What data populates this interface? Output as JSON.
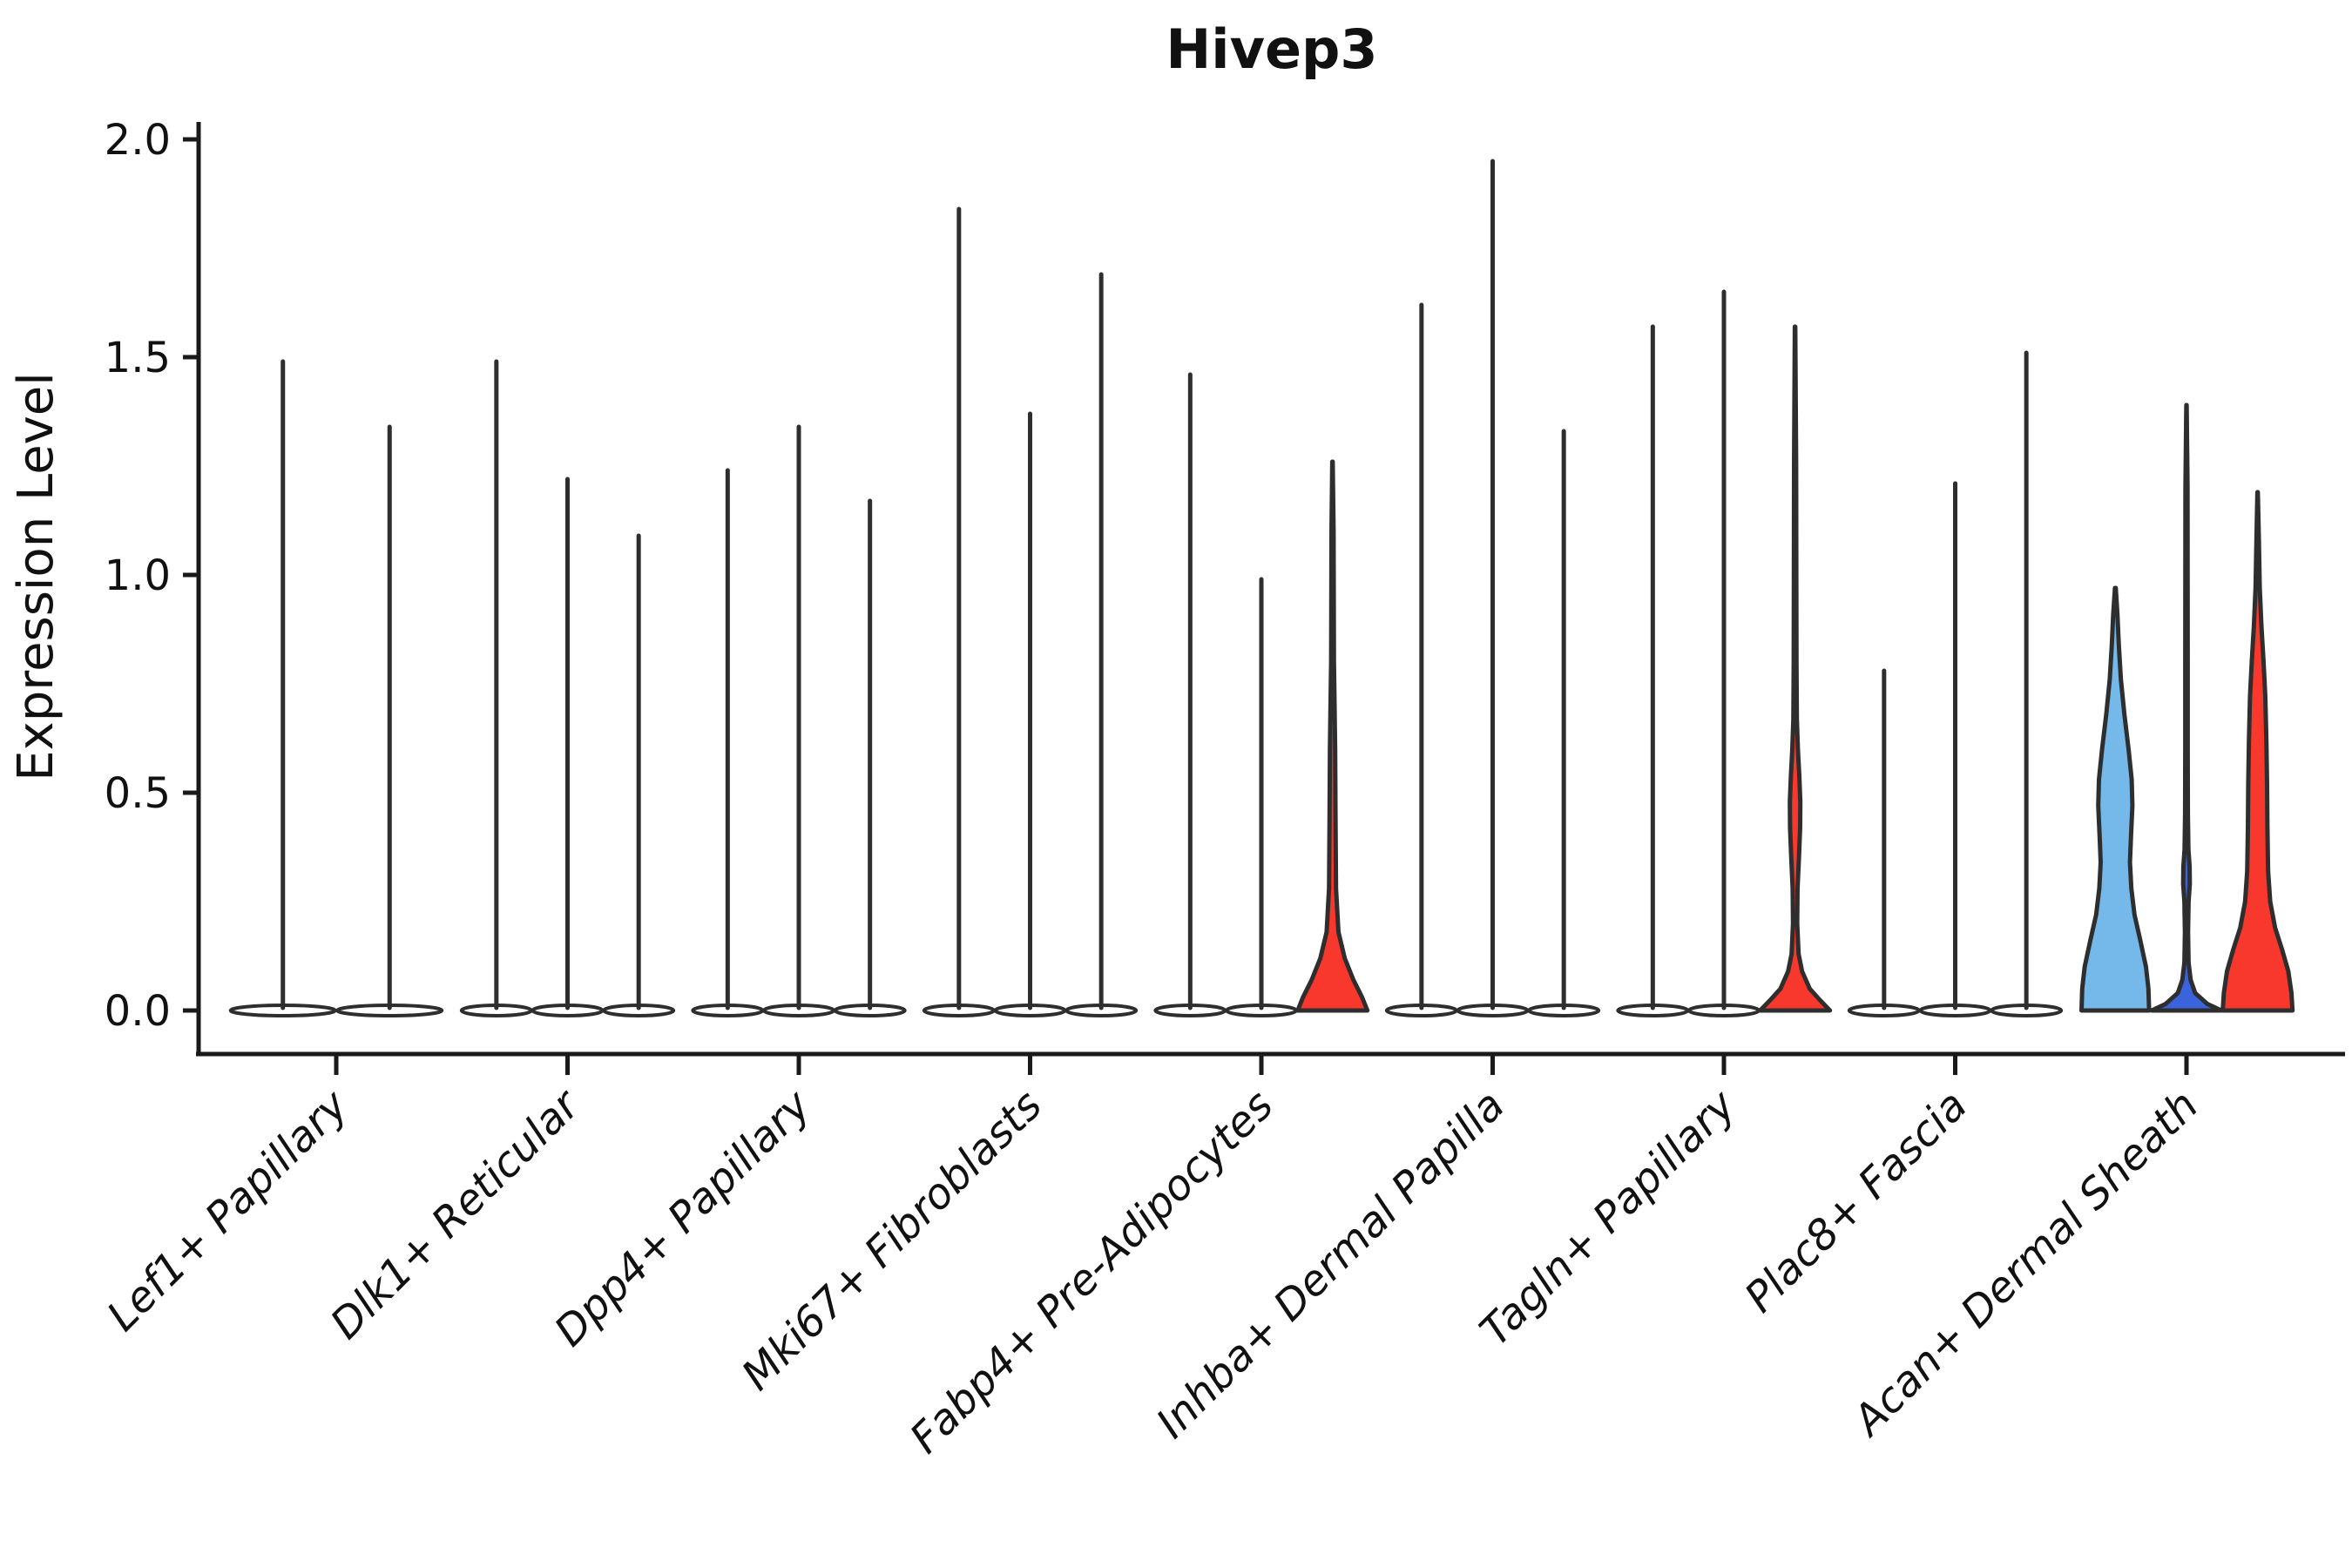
{
  "title": "Hivep3",
  "axes": {
    "ylabel": "Expression Level",
    "yticks": [
      "0.0",
      "0.5",
      "1.0",
      "1.5",
      "2.0"
    ],
    "ytick_values": [
      0.0,
      0.5,
      1.0,
      1.5,
      2.0
    ]
  },
  "colors": {
    "red": "#F8372D",
    "light_blue": "#74B9EA",
    "dark_blue": "#3B63DB",
    "outline": "#2E2E2E",
    "axis": "#1A1A1A",
    "background": "#FFFFFF"
  },
  "chart_data": {
    "type": "violin",
    "title": "Hivep3",
    "xlabel": "",
    "ylabel": "Expression Level",
    "ylim": [
      -0.1,
      2.04
    ],
    "yticks": [
      0.0,
      0.5,
      1.0,
      1.5,
      2.0
    ],
    "grid": false,
    "legend": "none",
    "description": "Violin plot of Hivep3 expression across 9 fibroblast cell-type clusters; each category contains 2-3 violins (sub-groups). Most violins are unfilled thin spikes with a flat base at 0; highlighted violins are filled red, light blue or dark blue. 'max' is the spike top (max expression value).",
    "categories": [
      {
        "label": "Lef1+ Papillary",
        "violins": [
          {
            "max": 1.49,
            "fill": "none"
          },
          {
            "max": 1.34,
            "fill": "none"
          }
        ]
      },
      {
        "label": "Dlk1+ Reticular",
        "violins": [
          {
            "max": 1.49,
            "fill": "none"
          },
          {
            "max": 1.22,
            "fill": "none"
          },
          {
            "max": 1.09,
            "fill": "none"
          }
        ]
      },
      {
        "label": "Dpp4+ Papillary",
        "violins": [
          {
            "max": 1.24,
            "fill": "none"
          },
          {
            "max": 1.34,
            "fill": "none"
          },
          {
            "max": 1.17,
            "fill": "none"
          }
        ]
      },
      {
        "label": "Mki67+ Fibroblasts",
        "violins": [
          {
            "max": 1.84,
            "fill": "none"
          },
          {
            "max": 1.37,
            "fill": "none"
          },
          {
            "max": 1.69,
            "fill": "none"
          }
        ]
      },
      {
        "label": "Fabp4+ Pre-Adipocytes",
        "violins": [
          {
            "max": 1.46,
            "fill": "none"
          },
          {
            "max": 0.99,
            "fill": "none"
          },
          {
            "max": 1.26,
            "fill": "red",
            "profile": [
              [
                0,
                1.0
              ],
              [
                0.03,
                0.85
              ],
              [
                0.07,
                0.6
              ],
              [
                0.12,
                0.35
              ],
              [
                0.18,
                0.17
              ],
              [
                0.28,
                0.1
              ],
              [
                0.45,
                0.085
              ],
              [
                0.6,
                0.075
              ],
              [
                0.72,
                0.055
              ],
              [
                0.8,
                0.04
              ],
              [
                0.95,
                0.035
              ],
              [
                1.1,
                0.03
              ],
              [
                1.26,
                0.006
              ]
            ]
          }
        ]
      },
      {
        "label": "Inhba+ Dermal Papilla",
        "violins": [
          {
            "max": 1.62,
            "fill": "none"
          },
          {
            "max": 1.95,
            "fill": "none"
          },
          {
            "max": 1.33,
            "fill": "none"
          }
        ]
      },
      {
        "label": "Tagln+ Papillary",
        "violins": [
          {
            "max": 1.57,
            "fill": "none"
          },
          {
            "max": 1.65,
            "fill": "none"
          },
          {
            "max": 1.57,
            "fill": "red",
            "profile": [
              [
                0,
                1.0
              ],
              [
                0.025,
                0.7
              ],
              [
                0.05,
                0.42
              ],
              [
                0.09,
                0.2
              ],
              [
                0.13,
                0.1
              ],
              [
                0.2,
                0.06
              ],
              [
                0.28,
                0.07
              ],
              [
                0.35,
                0.11
              ],
              [
                0.42,
                0.145
              ],
              [
                0.48,
                0.15
              ],
              [
                0.54,
                0.12
              ],
              [
                0.6,
                0.08
              ],
              [
                0.67,
                0.05
              ],
              [
                0.8,
                0.04
              ],
              [
                1.0,
                0.035
              ],
              [
                1.25,
                0.03
              ],
              [
                1.57,
                0.006
              ]
            ]
          }
        ]
      },
      {
        "label": "Plac8+ Fascia",
        "violins": [
          {
            "max": 0.78,
            "fill": "none"
          },
          {
            "max": 1.21,
            "fill": "none"
          },
          {
            "max": 1.51,
            "fill": "none"
          }
        ]
      },
      {
        "label": "Acan+ Dermal Sheath",
        "violins": [
          {
            "max": 0.97,
            "fill": "light_blue",
            "profile": [
              [
                0,
                0.97
              ],
              [
                0.05,
                0.95
              ],
              [
                0.1,
                0.88
              ],
              [
                0.16,
                0.72
              ],
              [
                0.22,
                0.55
              ],
              [
                0.28,
                0.46
              ],
              [
                0.34,
                0.42
              ],
              [
                0.4,
                0.45
              ],
              [
                0.47,
                0.49
              ],
              [
                0.53,
                0.47
              ],
              [
                0.6,
                0.38
              ],
              [
                0.68,
                0.26
              ],
              [
                0.76,
                0.16
              ],
              [
                0.84,
                0.1
              ],
              [
                0.91,
                0.06
              ],
              [
                0.97,
                0.012
              ]
            ]
          },
          {
            "max": 1.39,
            "fill": "dark_blue",
            "profile": [
              [
                0,
                1.0
              ],
              [
                0.015,
                0.6
              ],
              [
                0.04,
                0.25
              ],
              [
                0.07,
                0.12
              ],
              [
                0.11,
                0.06
              ],
              [
                0.18,
                0.045
              ],
              [
                0.25,
                0.06
              ],
              [
                0.29,
                0.095
              ],
              [
                0.33,
                0.09
              ],
              [
                0.37,
                0.055
              ],
              [
                0.45,
                0.04
              ],
              [
                0.6,
                0.035
              ],
              [
                0.8,
                0.035
              ],
              [
                1.0,
                0.032
              ],
              [
                1.2,
                0.03
              ],
              [
                1.39,
                0.006
              ]
            ]
          },
          {
            "max": 1.19,
            "fill": "red",
            "profile": [
              [
                0,
                1.0
              ],
              [
                0.04,
                0.97
              ],
              [
                0.09,
                0.88
              ],
              [
                0.14,
                0.7
              ],
              [
                0.19,
                0.5
              ],
              [
                0.25,
                0.36
              ],
              [
                0.32,
                0.3
              ],
              [
                0.42,
                0.28
              ],
              [
                0.52,
                0.27
              ],
              [
                0.62,
                0.25
              ],
              [
                0.72,
                0.22
              ],
              [
                0.8,
                0.17
              ],
              [
                0.88,
                0.11
              ],
              [
                0.97,
                0.06
              ],
              [
                1.08,
                0.035
              ],
              [
                1.19,
                0.006
              ]
            ]
          }
        ]
      }
    ]
  }
}
